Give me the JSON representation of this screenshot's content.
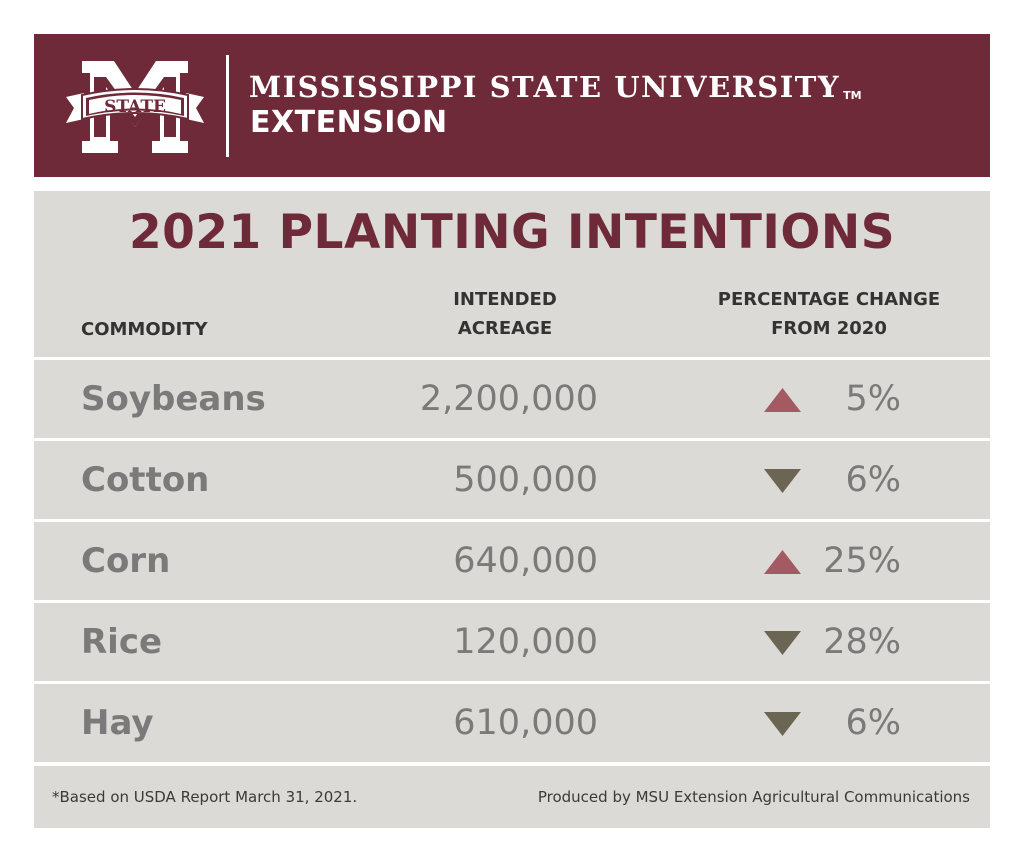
{
  "header": {
    "logo_text": "STATE",
    "org_name": "MISSISSIPPI STATE UNIVERSITY",
    "trademark": "TM",
    "org_sub": "EXTENSION"
  },
  "colors": {
    "brand": "#6f2a3a",
    "panel": "#dcdad6",
    "increase_arrow": "#a35a63",
    "decrease_arrow": "#6b6653",
    "value_text": "#7a7a7a"
  },
  "chart_data": {
    "type": "table",
    "title": "2021 PLANTING INTENTIONS",
    "columns": {
      "commodity": "COMMODITY",
      "acreage_line1": "INTENDED",
      "acreage_line2": "ACREAGE",
      "change_line1": "PERCENTAGE CHANGE",
      "change_line2": "FROM 2020"
    },
    "rows": [
      {
        "commodity": "Soybeans",
        "acreage": "2,200,000",
        "direction": "up",
        "change": "5%"
      },
      {
        "commodity": "Cotton",
        "acreage": "500,000",
        "direction": "down",
        "change": "6%"
      },
      {
        "commodity": "Corn",
        "acreage": "640,000",
        "direction": "up",
        "change": "25%"
      },
      {
        "commodity": "Rice",
        "acreage": "120,000",
        "direction": "down",
        "change": "28%"
      },
      {
        "commodity": "Hay",
        "acreage": "610,000",
        "direction": "down",
        "change": "6%"
      }
    ]
  },
  "footer": {
    "source": "*Based on USDA Report March 31, 2021.",
    "credit": "Produced by MSU Extension Agricultural Communications"
  }
}
